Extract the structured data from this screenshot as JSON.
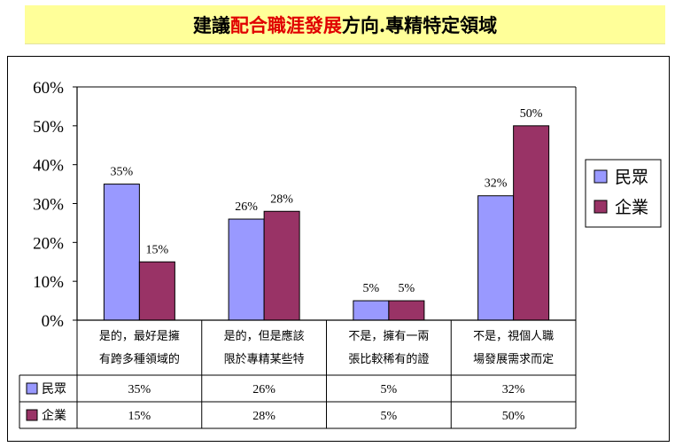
{
  "title": {
    "prefix": "建議",
    "highlight": "配合職涯發展",
    "suffix": "方向.專精特定領域"
  },
  "colors": {
    "series_1": "#9999ff",
    "series_2": "#993366",
    "title_bg": "#ffff99",
    "title_highlight": "#e00000"
  },
  "chart_data": {
    "type": "bar",
    "ylim": [
      0,
      60
    ],
    "yticks": [
      "0%",
      "10%",
      "20%",
      "30%",
      "40%",
      "50%",
      "60%"
    ],
    "categories": [
      [
        "是的，最好是擁",
        "有跨多種領域的"
      ],
      [
        "是的，但是應該",
        "限於專精某些特"
      ],
      [
        "不是，擁有一兩",
        "張比較稀有的證"
      ],
      [
        "不是，視個人職",
        "場發展需求而定"
      ]
    ],
    "series": [
      {
        "name": "民眾",
        "values": [
          35,
          26,
          5,
          32
        ],
        "labels": [
          "35%",
          "26%",
          "5%",
          "32%"
        ]
      },
      {
        "name": "企業",
        "values": [
          15,
          28,
          5,
          50
        ],
        "labels": [
          "15%",
          "28%",
          "5%",
          "50%"
        ]
      }
    ],
    "legend": "right",
    "data_table": true
  }
}
